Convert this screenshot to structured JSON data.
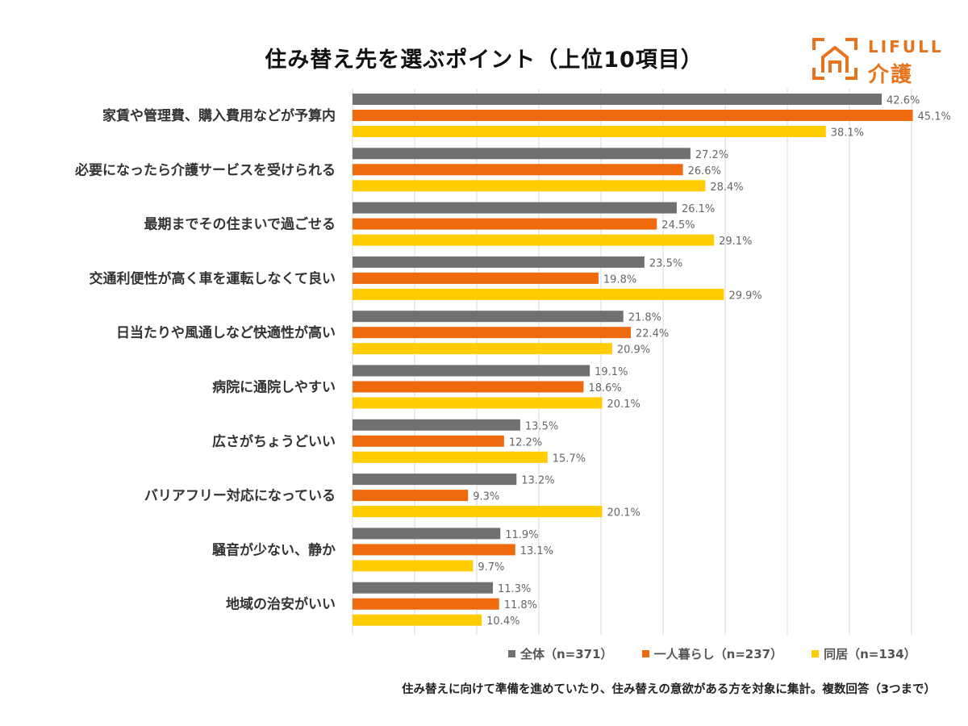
{
  "logo": {
    "brand": "LIFULL",
    "service": "介護"
  },
  "note": "住み替えに向けて準備を進めていたり、住み替えの意欲がある方を対象に集計。複数回答（3つまで）",
  "colors": {
    "zentai": "#707070",
    "hitorigurashi": "#ee6a0c",
    "dokyo": "#ffcc00",
    "logo": "#e8731d"
  },
  "chart_data": {
    "type": "bar",
    "orientation": "horizontal",
    "title": "住み替え先を選ぶポイント（上位10項目）",
    "xlim": [
      0,
      45
    ],
    "value_suffix": "%",
    "categories": [
      "家賃や管理費、購入費用などが予算内",
      "必要になったら介護サービスを受けられる",
      "最期までその住まいで過ごせる",
      "交通利便性が高く車を運転しなくて良い",
      "日当たりや風通しなど快適性が高い",
      "病院に通院しやすい",
      "広さがちょうどいい",
      "バリアフリー対応になっている",
      "騒音が少ない、静か",
      "地域の治安がいい"
    ],
    "series": [
      {
        "name": "全体（n=371）",
        "color": "#707070",
        "values": [
          42.6,
          27.2,
          26.1,
          23.5,
          21.8,
          19.1,
          13.5,
          13.2,
          11.9,
          11.3
        ]
      },
      {
        "name": "一人暮らし（n=237）",
        "color": "#ee6a0c",
        "values": [
          45.1,
          26.6,
          24.5,
          19.8,
          22.4,
          18.6,
          12.2,
          9.3,
          13.1,
          11.8
        ]
      },
      {
        "name": "同居（n=134）",
        "color": "#ffcc00",
        "values": [
          38.1,
          28.4,
          29.1,
          29.9,
          20.9,
          20.1,
          15.7,
          20.1,
          9.7,
          10.4
        ]
      }
    ]
  }
}
